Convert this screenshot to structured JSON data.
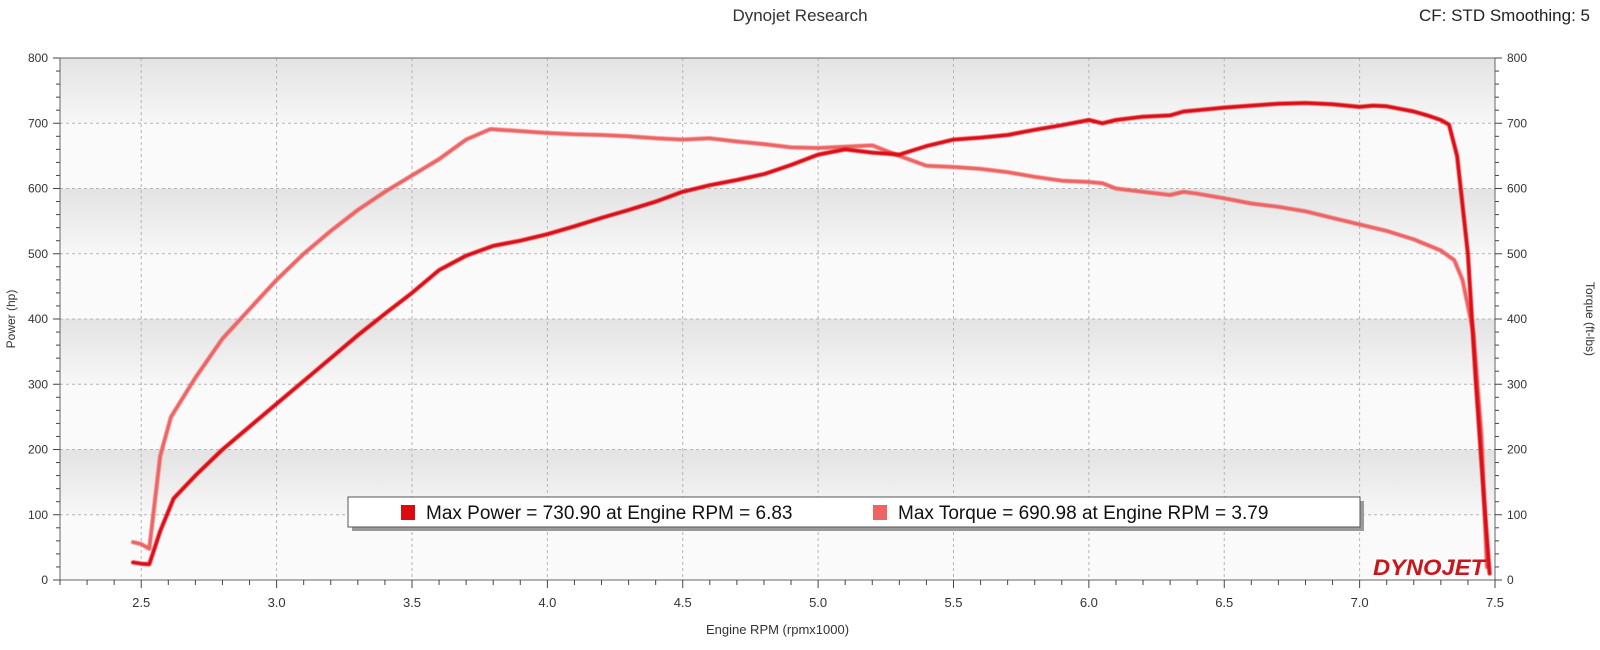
{
  "header": {
    "title": "Dynojet Research",
    "settings": "CF: STD Smoothing: 5"
  },
  "brand": {
    "logo_text": "DYNOJET",
    "color_dark": "#c8161d"
  },
  "chart_data": {
    "type": "line",
    "xlabel": "Engine RPM (rpmx1000)",
    "ylabel_left": "Power (hp)",
    "ylabel_right": "Torque (ft-lbs)",
    "xlim": [
      2.2,
      7.5
    ],
    "ylim": [
      0,
      800
    ],
    "x_ticks": [
      "2.5",
      "3.0",
      "3.5",
      "4.0",
      "4.5",
      "5.0",
      "5.5",
      "6.0",
      "6.5",
      "7.0",
      "7.5"
    ],
    "y_ticks": [
      "0",
      "100",
      "200",
      "300",
      "400",
      "500",
      "600",
      "700",
      "800"
    ],
    "grid": true,
    "legend": {
      "position": "bottom-center",
      "entries": [
        "Max Power = 730.90 at Engine RPM = 6.83",
        "Max Torque = 690.98 at Engine RPM = 3.79"
      ]
    },
    "series": [
      {
        "name": "Power",
        "color": "#dd0a12",
        "x": [
          2.47,
          2.5,
          2.53,
          2.57,
          2.62,
          2.7,
          2.8,
          2.9,
          3.0,
          3.1,
          3.2,
          3.3,
          3.4,
          3.5,
          3.6,
          3.7,
          3.8,
          3.9,
          4.0,
          4.1,
          4.2,
          4.3,
          4.4,
          4.5,
          4.6,
          4.7,
          4.8,
          4.9,
          5.0,
          5.1,
          5.2,
          5.3,
          5.4,
          5.5,
          5.6,
          5.7,
          5.8,
          5.9,
          6.0,
          6.05,
          6.1,
          6.2,
          6.3,
          6.35,
          6.4,
          6.5,
          6.6,
          6.7,
          6.8,
          6.9,
          7.0,
          7.05,
          7.1,
          7.2,
          7.25,
          7.3,
          7.33,
          7.36,
          7.4,
          7.43,
          7.46,
          7.48
        ],
        "values": [
          27,
          25,
          24,
          75,
          125,
          160,
          200,
          235,
          270,
          305,
          340,
          375,
          408,
          440,
          475,
          497,
          512,
          520,
          530,
          542,
          555,
          567,
          580,
          595,
          605,
          613,
          622,
          636,
          652,
          660,
          655,
          652,
          665,
          675,
          678,
          682,
          690,
          697,
          705,
          700,
          705,
          710,
          712,
          718,
          720,
          724,
          727,
          730,
          731,
          729,
          725,
          727,
          726,
          718,
          712,
          705,
          698,
          650,
          500,
          300,
          120,
          10
        ]
      },
      {
        "name": "Torque",
        "color": "#ee6464",
        "x": [
          2.47,
          2.5,
          2.53,
          2.55,
          2.57,
          2.61,
          2.7,
          2.8,
          2.9,
          3.0,
          3.1,
          3.2,
          3.3,
          3.4,
          3.5,
          3.6,
          3.7,
          3.79,
          3.9,
          4.0,
          4.1,
          4.2,
          4.3,
          4.4,
          4.5,
          4.6,
          4.7,
          4.8,
          4.9,
          5.0,
          5.1,
          5.2,
          5.3,
          5.4,
          5.5,
          5.6,
          5.7,
          5.8,
          5.9,
          6.0,
          6.05,
          6.1,
          6.2,
          6.3,
          6.35,
          6.4,
          6.5,
          6.6,
          6.7,
          6.8,
          6.9,
          7.0,
          7.1,
          7.2,
          7.3,
          7.35,
          7.38,
          7.42,
          7.45,
          7.47
        ],
        "values": [
          58,
          55,
          48,
          120,
          190,
          250,
          310,
          370,
          415,
          460,
          500,
          535,
          567,
          595,
          620,
          645,
          675,
          691,
          688,
          685,
          683,
          682,
          680,
          677,
          675,
          677,
          672,
          668,
          663,
          662,
          664,
          666,
          650,
          635,
          633,
          630,
          625,
          618,
          612,
          610,
          608,
          600,
          595,
          590,
          595,
          592,
          585,
          577,
          572,
          565,
          555,
          545,
          535,
          522,
          505,
          490,
          460,
          380,
          220,
          20
        ]
      }
    ]
  }
}
